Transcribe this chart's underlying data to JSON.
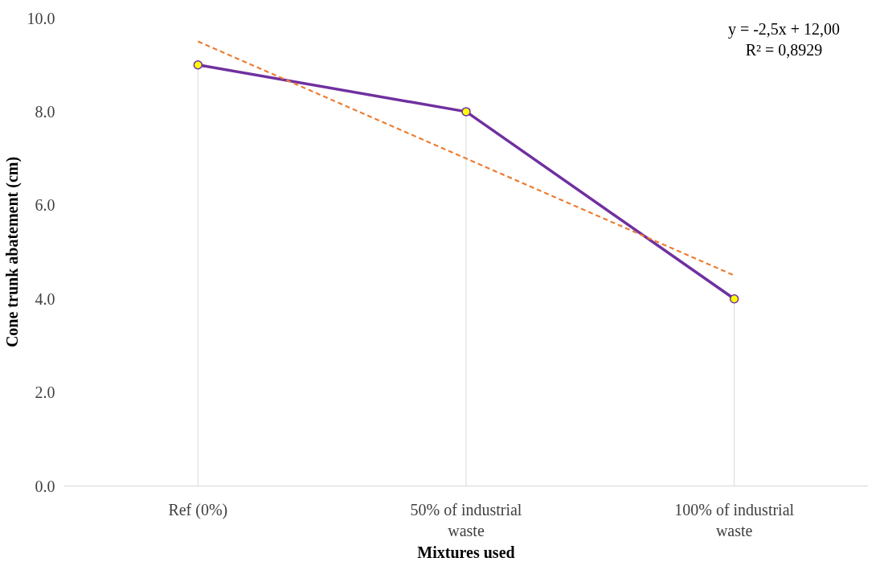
{
  "chart_data": {
    "type": "line",
    "xlabel": "Mixtures used",
    "ylabel": "Cone trunk abatement (cm)",
    "categories": [
      "Ref (0%)",
      "50% of industrial waste",
      "100% of industrial waste"
    ],
    "series": [
      {
        "type": "lollipop",
        "color": "#ffff00",
        "marker": "circle",
        "values": [
          9.0,
          8.0,
          4.0
        ]
      },
      {
        "color": "#7030a0",
        "marker": "none",
        "line_style": "solid",
        "values": [
          9.0,
          8.0,
          4.0
        ]
      },
      {
        "type": "line",
        "color": "#ed7d31",
        "marker": "none",
        "line_style": "dashed",
        "values": [
          9.5,
          7.0,
          4.5
        ]
      }
    ],
    "ylim": [
      0,
      10
    ],
    "yticks": [
      {
        "value": 0,
        "label": "0.0"
      },
      {
        "value": 2,
        "label": "2.0"
      },
      {
        "value": 4,
        "label": "4.0"
      },
      {
        "value": 6,
        "label": "6.0"
      },
      {
        "value": 8,
        "label": "8.0"
      },
      {
        "value": 10,
        "label": "10.0"
      }
    ],
    "annotations": [
      "y = -2,5x + 12,00",
      "R² = 0,8929"
    ]
  }
}
